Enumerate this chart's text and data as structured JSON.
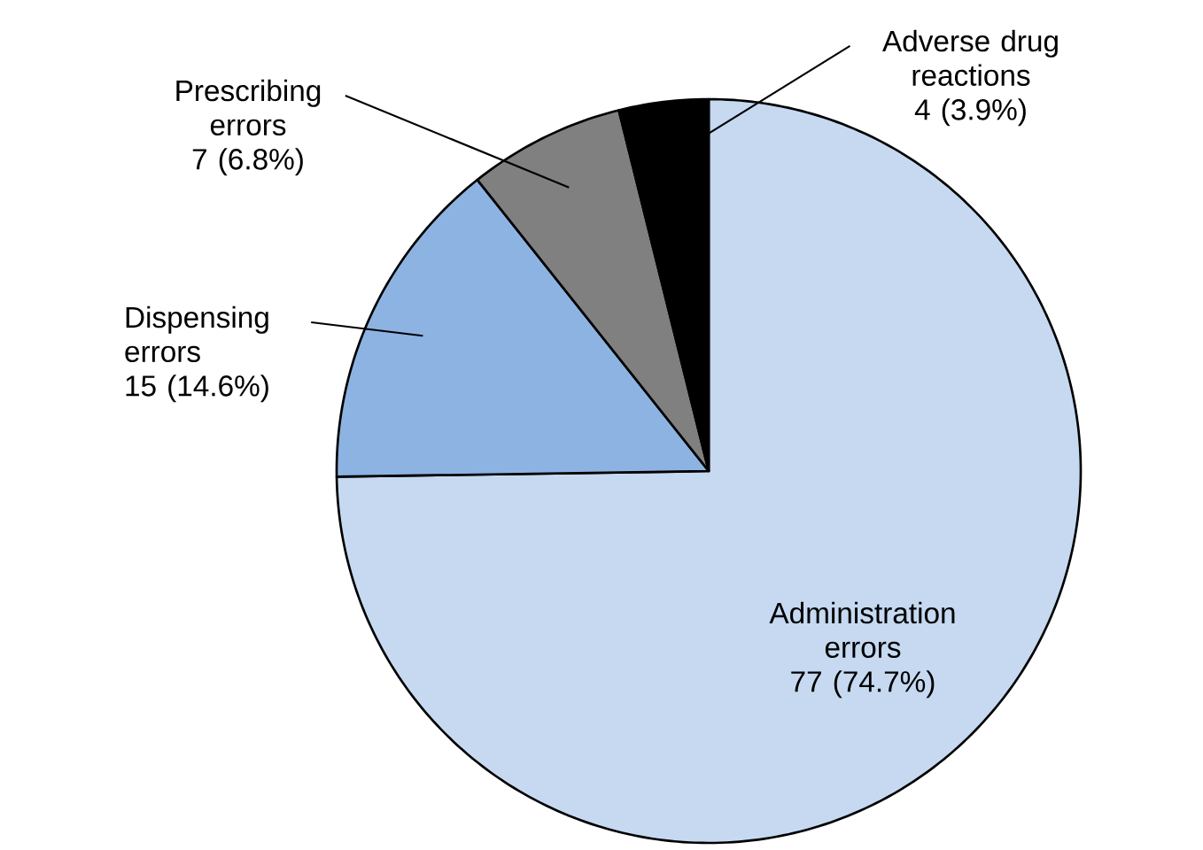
{
  "chart_data": {
    "type": "pie",
    "categories": [
      "Administration errors",
      "Dispensing errors",
      "Prescribing errors",
      "Adverse drug reactions"
    ],
    "values": [
      77,
      15,
      7,
      4
    ],
    "colors": [
      "#c6d9f1",
      "#8db3e2",
      "#808080",
      "#000000"
    ],
    "value_labels": [
      "77 (74.7%)",
      "15 (14.6%)",
      "7 (6.8%)",
      "4 (3.9%)"
    ]
  }
}
